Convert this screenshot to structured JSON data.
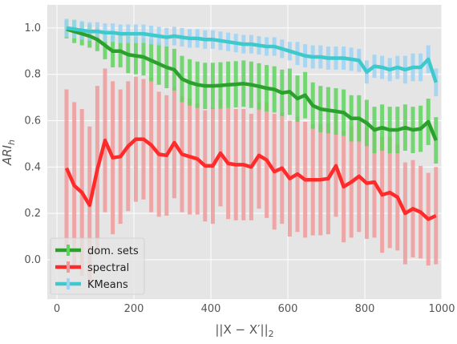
{
  "chart_data": {
    "type": "line",
    "title": "",
    "xlabel": "||X − X′||",
    "xlabel_sub": "2",
    "ylabel": "ARI",
    "ylabel_sub": "h",
    "xlim": [
      -25,
      1000
    ],
    "ylim": [
      -0.17,
      1.1
    ],
    "xticks": [
      0,
      200,
      400,
      600,
      800,
      1000
    ],
    "xtick_labels": [
      "0",
      "200",
      "400",
      "600",
      "800",
      "1000"
    ],
    "yticks": [
      0.0,
      0.2,
      0.4,
      0.6,
      0.8,
      1.0
    ],
    "ytick_labels": [
      "0.0",
      "0.2",
      "0.4",
      "0.6",
      "0.8",
      "1.0"
    ],
    "grid": true,
    "style": "ggplot",
    "legend_position": "lower-left",
    "x": [
      25,
      45,
      65,
      85,
      105,
      125,
      145,
      165,
      185,
      205,
      225,
      245,
      265,
      285,
      305,
      325,
      345,
      365,
      385,
      405,
      425,
      445,
      465,
      485,
      505,
      525,
      545,
      565,
      585,
      605,
      625,
      645,
      665,
      685,
      705,
      725,
      745,
      765,
      785,
      805,
      825,
      845,
      865,
      885,
      905,
      925,
      945,
      965,
      985
    ],
    "series": [
      {
        "name": "dom. sets",
        "color": "#2ca02c",
        "err_color": "#5fd35f",
        "values": [
          0.995,
          0.985,
          0.975,
          0.965,
          0.95,
          0.925,
          0.9,
          0.9,
          0.885,
          0.88,
          0.875,
          0.86,
          0.845,
          0.83,
          0.82,
          0.78,
          0.765,
          0.755,
          0.75,
          0.75,
          0.752,
          0.755,
          0.757,
          0.76,
          0.755,
          0.748,
          0.74,
          0.735,
          0.72,
          0.725,
          0.695,
          0.71,
          0.665,
          0.65,
          0.645,
          0.64,
          0.635,
          0.61,
          0.61,
          0.59,
          0.56,
          0.57,
          0.56,
          0.56,
          0.57,
          0.56,
          0.565,
          0.595,
          0.515
        ],
        "errors": [
          0.04,
          0.05,
          0.05,
          0.05,
          0.05,
          0.06,
          0.07,
          0.07,
          0.08,
          0.08,
          0.08,
          0.09,
          0.09,
          0.09,
          0.09,
          0.1,
          0.1,
          0.1,
          0.1,
          0.1,
          0.1,
          0.1,
          0.1,
          0.1,
          0.1,
          0.1,
          0.1,
          0.1,
          0.1,
          0.1,
          0.1,
          0.1,
          0.1,
          0.1,
          0.1,
          0.1,
          0.1,
          0.1,
          0.1,
          0.1,
          0.1,
          0.1,
          0.1,
          0.1,
          0.1,
          0.1,
          0.1,
          0.1,
          0.1
        ]
      },
      {
        "name": "spectral",
        "color": "#ff2b2b",
        "err_color": "#ef9a9a",
        "values": [
          0.395,
          0.32,
          0.29,
          0.235,
          0.39,
          0.515,
          0.44,
          0.445,
          0.49,
          0.52,
          0.52,
          0.495,
          0.455,
          0.45,
          0.505,
          0.455,
          0.445,
          0.435,
          0.405,
          0.405,
          0.46,
          0.415,
          0.41,
          0.41,
          0.4,
          0.45,
          0.43,
          0.38,
          0.395,
          0.35,
          0.37,
          0.345,
          0.345,
          0.345,
          0.35,
          0.405,
          0.315,
          0.335,
          0.36,
          0.33,
          0.335,
          0.28,
          0.29,
          0.27,
          0.2,
          0.22,
          0.205,
          0.175,
          0.19
        ],
        "errors": [
          0.34,
          0.36,
          0.36,
          0.34,
          0.36,
          0.31,
          0.33,
          0.29,
          0.28,
          0.27,
          0.26,
          0.29,
          0.27,
          0.26,
          0.24,
          0.25,
          0.25,
          0.24,
          0.24,
          0.25,
          0.23,
          0.24,
          0.24,
          0.24,
          0.23,
          0.23,
          0.25,
          0.25,
          0.24,
          0.25,
          0.25,
          0.25,
          0.24,
          0.24,
          0.24,
          0.22,
          0.24,
          0.24,
          0.24,
          0.24,
          0.24,
          0.25,
          0.24,
          0.23,
          0.22,
          0.21,
          0.2,
          0.2,
          0.21
        ]
      },
      {
        "name": "KMeans",
        "color": "#3ec9cc",
        "err_color": "#9dd3f5",
        "values": [
          1.0,
          0.995,
          0.99,
          0.985,
          0.985,
          0.98,
          0.98,
          0.975,
          0.975,
          0.975,
          0.975,
          0.97,
          0.965,
          0.96,
          0.965,
          0.96,
          0.955,
          0.955,
          0.95,
          0.95,
          0.945,
          0.94,
          0.935,
          0.93,
          0.93,
          0.925,
          0.92,
          0.92,
          0.91,
          0.9,
          0.89,
          0.88,
          0.875,
          0.875,
          0.87,
          0.87,
          0.87,
          0.865,
          0.86,
          0.81,
          0.835,
          0.83,
          0.82,
          0.83,
          0.82,
          0.83,
          0.83,
          0.865,
          0.765
        ],
        "errors": [
          0.04,
          0.04,
          0.04,
          0.04,
          0.04,
          0.04,
          0.04,
          0.04,
          0.04,
          0.04,
          0.04,
          0.04,
          0.04,
          0.04,
          0.04,
          0.04,
          0.04,
          0.04,
          0.04,
          0.04,
          0.04,
          0.04,
          0.04,
          0.04,
          0.04,
          0.04,
          0.04,
          0.04,
          0.04,
          0.04,
          0.05,
          0.05,
          0.05,
          0.05,
          0.05,
          0.05,
          0.05,
          0.05,
          0.05,
          0.05,
          0.05,
          0.05,
          0.05,
          0.05,
          0.06,
          0.06,
          0.06,
          0.06,
          0.06
        ]
      }
    ]
  }
}
